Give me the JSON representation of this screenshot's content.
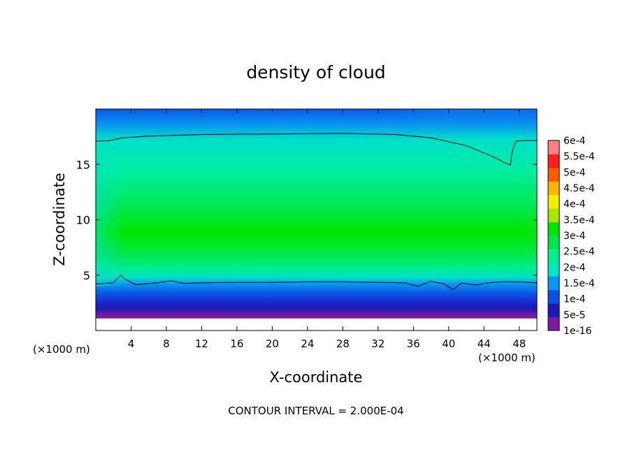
{
  "chart_data": {
    "type": "heatmap",
    "title": "density of cloud",
    "xlabel": "X-coordinate",
    "ylabel": "Z-coordinate",
    "x_unit_left": "(×1000 m)",
    "x_unit_right": "(×1000 m)",
    "footer": "CONTOUR INTERVAL = 2.000E-04",
    "xlim": [
      0,
      50
    ],
    "ylim": [
      0,
      20
    ],
    "x_ticks": [
      4,
      8,
      12,
      16,
      20,
      24,
      28,
      32,
      36,
      40,
      44,
      48
    ],
    "y_ticks": [
      5,
      10,
      15
    ],
    "grid": false,
    "contour_level": 0.0002,
    "contour_upper_z": [
      [
        0,
        17.1
      ],
      [
        1.5,
        17.15
      ],
      [
        3,
        17.4
      ],
      [
        6,
        17.55
      ],
      [
        12,
        17.7
      ],
      [
        20,
        17.75
      ],
      [
        28,
        17.8
      ],
      [
        34,
        17.7
      ],
      [
        38,
        17.4
      ],
      [
        42,
        16.7
      ],
      [
        45,
        15.7
      ],
      [
        46.5,
        15.1
      ],
      [
        47,
        14.95
      ],
      [
        47.2,
        16.2
      ],
      [
        47.6,
        17.1
      ],
      [
        48.5,
        17.15
      ],
      [
        50,
        17.15
      ]
    ],
    "contour_lower_z": [
      [
        0,
        4.2
      ],
      [
        2,
        4.3
      ],
      [
        2.8,
        5.0
      ],
      [
        3.4,
        4.6
      ],
      [
        4.5,
        4.15
      ],
      [
        7,
        4.3
      ],
      [
        8.5,
        4.5
      ],
      [
        10,
        4.25
      ],
      [
        12,
        4.3
      ],
      [
        16,
        4.35
      ],
      [
        20,
        4.35
      ],
      [
        24,
        4.4
      ],
      [
        28,
        4.4
      ],
      [
        32,
        4.35
      ],
      [
        35,
        4.3
      ],
      [
        36.5,
        4.0
      ],
      [
        38,
        4.45
      ],
      [
        39.5,
        4.2
      ],
      [
        40.5,
        3.7
      ],
      [
        41.5,
        4.3
      ],
      [
        43,
        4.1
      ],
      [
        44.5,
        4.3
      ],
      [
        46,
        4.4
      ],
      [
        48,
        4.4
      ],
      [
        50,
        4.3
      ]
    ],
    "colorbar": {
      "labels": [
        "1e-16",
        "5e-5",
        "1e-4",
        "1.5e-4",
        "2e-4",
        "2.5e-4",
        "3e-4",
        "3.5e-4",
        "4e-4",
        "4.5e-4",
        "5e-4",
        "5.5e-4",
        "6e-4"
      ],
      "colors": [
        "#7a1aa0",
        "#1a1ab4",
        "#0a4ee6",
        "#0a96f0",
        "#00e6c8",
        "#00f08c",
        "#00e650",
        "#00e600",
        "#aae600",
        "#f0f000",
        "#ffb400",
        "#ff5a00",
        "#ff1e1e",
        "#ff8080"
      ]
    },
    "field_colors": {
      "purple": "#7a1aa0",
      "dark_blue": "#1a1ab4",
      "blue": "#0a4ee6",
      "sky": "#0a96f0",
      "cyan": "#00e6c8",
      "teal_green": "#00f08c",
      "green": "#00e650",
      "bright_green": "#00e600"
    }
  }
}
